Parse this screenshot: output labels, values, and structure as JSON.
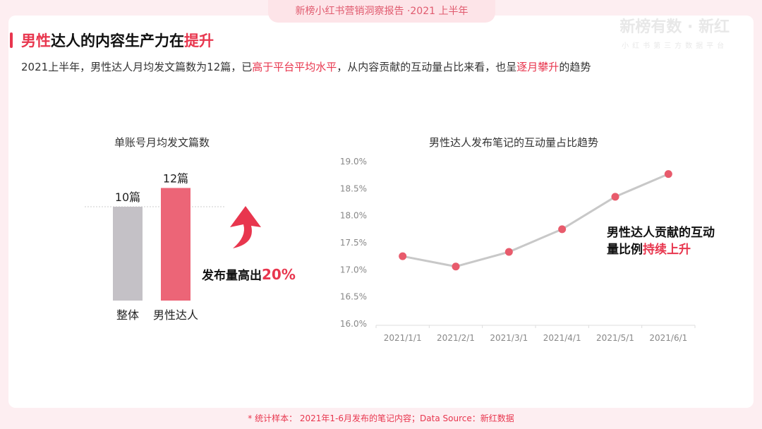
{
  "header": {
    "report": "新榜小红书营销洞察报告 ·2021 上半年",
    "brand_name": "新榜有数 · 新红",
    "brand_tagline": "小红书第三方数据平台"
  },
  "title": {
    "part1": "男性",
    "part2": "达人的内容生产力在",
    "part3": "提升"
  },
  "subtitle": {
    "part1": "2021上半年，男性达人月均发文篇数为12篇，已",
    "part2": "高于平台平均水平",
    "part3": "，从内容贡献的互动量占比来看，也呈",
    "part4": "逐月攀升",
    "part5": "的趋势"
  },
  "colors": {
    "accent": "#e8364e",
    "bar_gray": "#c4c1c6",
    "bar_red": "#ec6577",
    "line": "#c8c8c8",
    "point": "#e85b6c"
  },
  "left_callout": {
    "part1": "发布量高出",
    "part2": "20%"
  },
  "arrow_icon": "up-arrow-icon",
  "right_callout": {
    "line1": "男性达人贡献的互动",
    "line2a": "量比例",
    "line2b": "持续上升"
  },
  "footer": "* 统计样本： 2021年1-6月发布的笔记内容；Data Source：新红数据",
  "chart_data": [
    {
      "type": "bar",
      "title": "单账号月均发文篇数",
      "categories": [
        "整体",
        "男性达人"
      ],
      "values": [
        10,
        12
      ],
      "data_labels": [
        "10篇",
        "12篇"
      ],
      "ylim": [
        0,
        14
      ]
    },
    {
      "type": "line",
      "title": "男性达人发布笔记的互动量占比趋势",
      "x": [
        "2021/1/1",
        "2021/2/1",
        "2021/3/1",
        "2021/4/1",
        "2021/5/1",
        "2021/6/1"
      ],
      "values": [
        17.25,
        17.06,
        17.33,
        17.75,
        18.35,
        18.77
      ],
      "yticks": [
        "16.0%",
        "16.5%",
        "17.0%",
        "17.5%",
        "18.0%",
        "18.5%",
        "19.0%"
      ],
      "ylim": [
        16.0,
        19.0
      ],
      "grid": false
    }
  ]
}
